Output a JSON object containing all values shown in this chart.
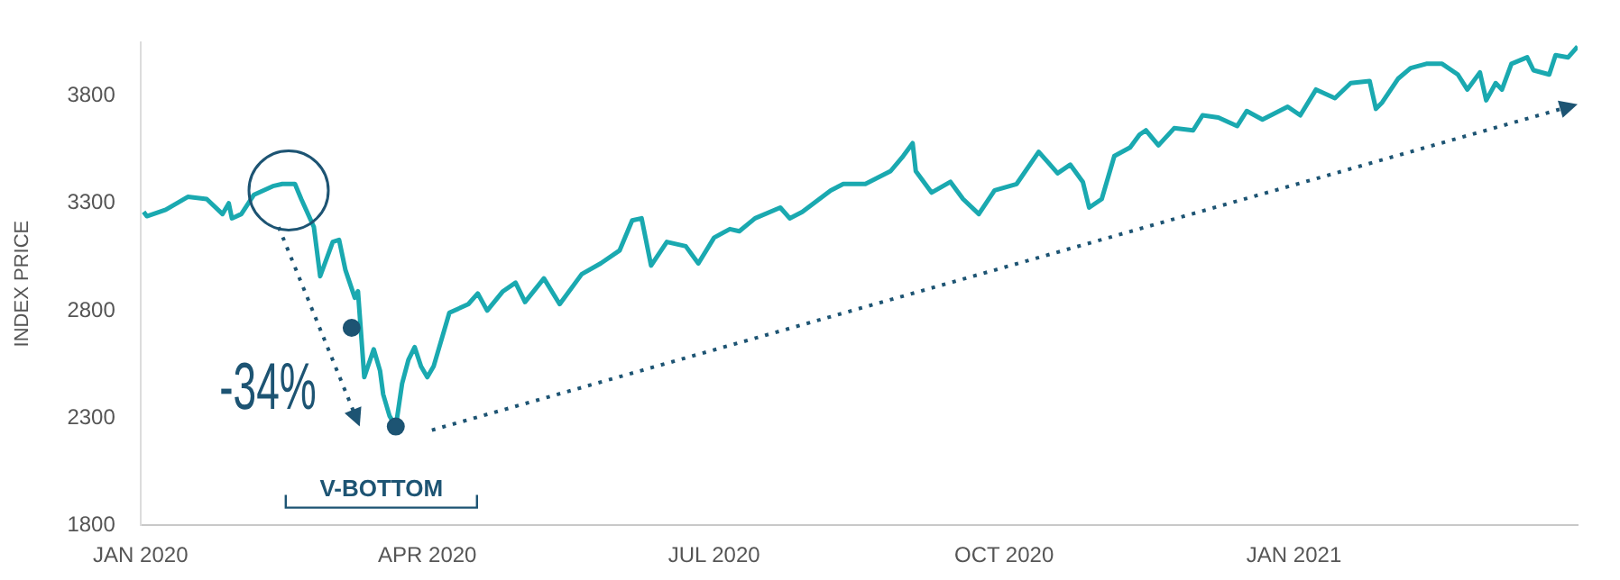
{
  "chart_data": {
    "type": "line",
    "ylabel": "INDEX PRICE",
    "xlim": [
      "2020-01-01",
      "2021-04-01"
    ],
    "xticks": [
      {
        "value": "2020-01-01",
        "label": "JAN 2020"
      },
      {
        "value": "2020-04-01",
        "label": "APR 2020"
      },
      {
        "value": "2020-07-01",
        "label": "JUL 2020"
      },
      {
        "value": "2020-10-01",
        "label": "OCT 2020"
      },
      {
        "value": "2021-01-01",
        "label": "JAN 2021"
      }
    ],
    "ylim": [
      1800,
      4050
    ],
    "yticks": [
      1800,
      2300,
      2800,
      3300,
      3800
    ],
    "grid": false,
    "legend": false,
    "annotations": [
      "-34%",
      "V-BOTTOM"
    ],
    "series": [
      {
        "color": "#1aa9b0",
        "x": [
          "2020-01-02",
          "2020-01-03",
          "2020-01-09",
          "2020-01-16",
          "2020-01-22",
          "2020-01-27",
          "2020-01-29",
          "2020-01-30",
          "2020-02-02",
          "2020-02-06",
          "2020-02-12",
          "2020-02-15",
          "2020-02-19",
          "2020-02-21",
          "2020-02-25",
          "2020-02-27",
          "2020-03-02",
          "2020-03-04",
          "2020-03-06",
          "2020-03-09",
          "2020-03-10",
          "2020-03-12",
          "2020-03-15",
          "2020-03-17",
          "2020-03-18",
          "2020-03-20",
          "2020-03-22",
          "2020-03-24",
          "2020-03-26",
          "2020-03-28",
          "2020-03-30",
          "2020-04-01",
          "2020-04-03",
          "2020-04-08",
          "2020-04-14",
          "2020-04-17",
          "2020-04-20",
          "2020-04-25",
          "2020-04-29",
          "2020-05-02",
          "2020-05-08",
          "2020-05-13",
          "2020-05-20",
          "2020-05-26",
          "2020-06-01",
          "2020-06-05",
          "2020-06-08",
          "2020-06-11",
          "2020-06-16",
          "2020-06-22",
          "2020-06-26",
          "2020-07-01",
          "2020-07-06",
          "2020-07-09",
          "2020-07-14",
          "2020-07-22",
          "2020-07-25",
          "2020-07-29",
          "2020-08-07",
          "2020-08-11",
          "2020-08-18",
          "2020-08-26",
          "2020-08-30",
          "2020-09-02",
          "2020-09-03",
          "2020-09-08",
          "2020-09-14",
          "2020-09-18",
          "2020-09-23",
          "2020-09-28",
          "2020-10-05",
          "2020-10-12",
          "2020-10-15",
          "2020-10-18",
          "2020-10-22",
          "2020-10-26",
          "2020-10-28",
          "2020-11-01",
          "2020-11-05",
          "2020-11-10",
          "2020-11-13",
          "2020-11-15",
          "2020-11-19",
          "2020-11-24",
          "2020-11-30",
          "2020-12-03",
          "2020-12-08",
          "2020-12-14",
          "2020-12-17",
          "2020-12-22",
          "2020-12-30",
          "2021-01-03",
          "2021-01-08",
          "2021-01-14",
          "2021-01-19",
          "2021-01-25",
          "2021-01-27",
          "2021-01-29",
          "2021-02-03",
          "2021-02-07",
          "2021-02-12",
          "2021-02-17",
          "2021-02-22",
          "2021-02-25",
          "2021-03-01",
          "2021-03-03",
          "2021-03-06",
          "2021-03-08",
          "2021-03-11",
          "2021-03-16",
          "2021-03-18",
          "2021-03-23",
          "2021-03-25",
          "2021-03-29",
          "2021-04-01"
        ],
        "values": [
          3260,
          3240,
          3270,
          3330,
          3320,
          3250,
          3300,
          3230,
          3250,
          3340,
          3380,
          3390,
          3390,
          3320,
          3190,
          2960,
          3120,
          3130,
          2990,
          2860,
          2890,
          2490,
          2620,
          2520,
          2410,
          2310,
          2260,
          2460,
          2570,
          2630,
          2540,
          2490,
          2540,
          2790,
          2830,
          2880,
          2800,
          2890,
          2930,
          2840,
          2950,
          2830,
          2970,
          3020,
          3080,
          3220,
          3230,
          3010,
          3120,
          3100,
          3020,
          3140,
          3180,
          3170,
          3230,
          3280,
          3230,
          3260,
          3360,
          3390,
          3390,
          3450,
          3520,
          3580,
          3450,
          3350,
          3400,
          3320,
          3250,
          3360,
          3390,
          3540,
          3490,
          3440,
          3480,
          3400,
          3280,
          3320,
          3520,
          3560,
          3620,
          3640,
          3570,
          3650,
          3640,
          3710,
          3700,
          3660,
          3730,
          3690,
          3750,
          3710,
          3830,
          3790,
          3860,
          3870,
          3740,
          3770,
          3880,
          3930,
          3950,
          3950,
          3900,
          3830,
          3910,
          3780,
          3860,
          3830,
          3950,
          3980,
          3920,
          3900,
          3990,
          3980,
          4030
        ]
      },
      {
        "type": "scatter",
        "color": "#1d5473",
        "x": [
          "2020-03-08",
          "2020-03-22"
        ],
        "values": [
          2720,
          2260
        ]
      },
      {
        "type": "bubble",
        "color": "#1d5473",
        "x": [
          "2020-02-17"
        ],
        "values": [
          3360
        ],
        "sizes": [
          1
        ]
      }
    ]
  }
}
